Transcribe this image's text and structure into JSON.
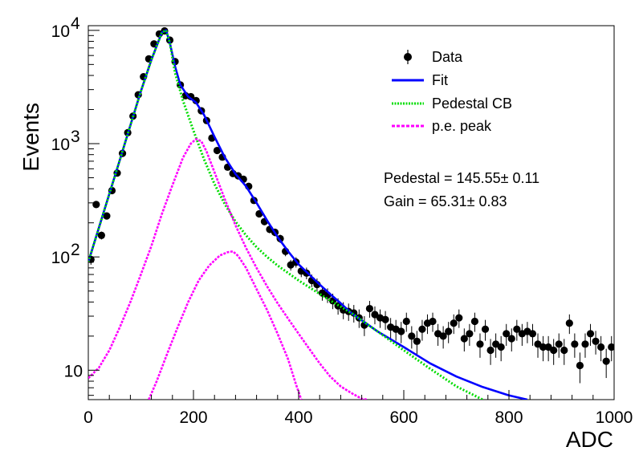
{
  "chart_data": {
    "type": "scatter",
    "xlabel": "ADC",
    "ylabel": "Events",
    "xlim": [
      0,
      1000
    ],
    "ylim": [
      5.5,
      11000
    ],
    "yscale": "log",
    "grid": false,
    "x_ticks": [
      "0",
      "200",
      "400",
      "600",
      "800",
      "1000"
    ],
    "y_ticks": [
      {
        "base": "10",
        "exp": "4",
        "value": 10000
      },
      {
        "base": "10",
        "exp": "3",
        "value": 1000
      },
      {
        "base": "10",
        "exp": "2",
        "value": 100
      },
      {
        "base": "10",
        "exp": "",
        "value": 10
      }
    ],
    "legend": {
      "placement": "top-right",
      "entries": [
        {
          "label": "Data",
          "style": "marker",
          "color": "#000000"
        },
        {
          "label": "Fit",
          "style": "solid",
          "color": "#0000ff"
        },
        {
          "label": "Pedestal CB",
          "style": "dotted",
          "color": "#00dd00"
        },
        {
          "label": "p.e. peak",
          "style": "dashed",
          "color": "#ff00ff"
        }
      ]
    },
    "annotations": [
      "Pedestal = 145.55± 0.11",
      "Gain = 65.31± 0.83"
    ],
    "series": [
      {
        "name": "Data",
        "kind": "points",
        "color": "#000000",
        "points": [
          [
            5,
            95
          ],
          [
            15,
            290
          ],
          [
            25,
            155
          ],
          [
            35,
            230
          ],
          [
            45,
            385
          ],
          [
            55,
            550
          ],
          [
            65,
            820
          ],
          [
            75,
            1250
          ],
          [
            85,
            1750
          ],
          [
            95,
            2700
          ],
          [
            105,
            3900
          ],
          [
            115,
            5600
          ],
          [
            125,
            7600
          ],
          [
            135,
            9300
          ],
          [
            145,
            9900
          ],
          [
            155,
            8200
          ],
          [
            165,
            5300
          ],
          [
            175,
            3300
          ],
          [
            185,
            2650
          ],
          [
            195,
            2600
          ],
          [
            205,
            2400
          ],
          [
            215,
            1950
          ],
          [
            225,
            1600
          ],
          [
            235,
            1120
          ],
          [
            245,
            870
          ],
          [
            255,
            760
          ],
          [
            265,
            620
          ],
          [
            275,
            545
          ],
          [
            285,
            520
          ],
          [
            295,
            485
          ],
          [
            305,
            420
          ],
          [
            315,
            315
          ],
          [
            325,
            240
          ],
          [
            335,
            205
          ],
          [
            345,
            175
          ],
          [
            355,
            165
          ],
          [
            365,
            145
          ],
          [
            375,
            112
          ],
          [
            385,
            85
          ],
          [
            395,
            90
          ],
          [
            405,
            75
          ],
          [
            415,
            72
          ],
          [
            425,
            62
          ],
          [
            435,
            57
          ],
          [
            445,
            48
          ],
          [
            455,
            46
          ],
          [
            465,
            41
          ],
          [
            475,
            37
          ],
          [
            485,
            34
          ],
          [
            495,
            33
          ],
          [
            505,
            32
          ],
          [
            515,
            29
          ],
          [
            525,
            25
          ],
          [
            535,
            35
          ],
          [
            545,
            31
          ],
          [
            555,
            29
          ],
          [
            565,
            28
          ],
          [
            575,
            24
          ],
          [
            585,
            23
          ],
          [
            595,
            22
          ],
          [
            605,
            27
          ],
          [
            615,
            20
          ],
          [
            625,
            18
          ],
          [
            635,
            23
          ],
          [
            645,
            26
          ],
          [
            655,
            27
          ],
          [
            665,
            21
          ],
          [
            675,
            20
          ],
          [
            685,
            22
          ],
          [
            695,
            26
          ],
          [
            705,
            29
          ],
          [
            715,
            19
          ],
          [
            725,
            21
          ],
          [
            735,
            27
          ],
          [
            745,
            17
          ],
          [
            755,
            23
          ],
          [
            765,
            15
          ],
          [
            775,
            17
          ],
          [
            785,
            16
          ],
          [
            795,
            21
          ],
          [
            805,
            19
          ],
          [
            815,
            23
          ],
          [
            825,
            21
          ],
          [
            835,
            22
          ],
          [
            845,
            21
          ],
          [
            855,
            17
          ],
          [
            865,
            16
          ],
          [
            875,
            16
          ],
          [
            885,
            15
          ],
          [
            895,
            17
          ],
          [
            905,
            15
          ],
          [
            915,
            26
          ],
          [
            925,
            17
          ],
          [
            935,
            11
          ],
          [
            945,
            17
          ],
          [
            955,
            21
          ],
          [
            965,
            18
          ],
          [
            975,
            16
          ],
          [
            985,
            12
          ],
          [
            995,
            16
          ]
        ]
      },
      {
        "name": "Fit",
        "kind": "solid",
        "color": "#0000ff",
        "points": [
          [
            0,
            90
          ],
          [
            20,
            180
          ],
          [
            40,
            360
          ],
          [
            60,
            720
          ],
          [
            80,
            1450
          ],
          [
            100,
            2900
          ],
          [
            120,
            5500
          ],
          [
            140,
            9600
          ],
          [
            148,
            10000
          ],
          [
            155,
            7800
          ],
          [
            165,
            4800
          ],
          [
            175,
            3300
          ],
          [
            190,
            2600
          ],
          [
            205,
            2300
          ],
          [
            220,
            1800
          ],
          [
            240,
            1150
          ],
          [
            260,
            750
          ],
          [
            280,
            540
          ],
          [
            300,
            420
          ],
          [
            320,
            300
          ],
          [
            340,
            210
          ],
          [
            360,
            150
          ],
          [
            380,
            112
          ],
          [
            400,
            86
          ],
          [
            420,
            70
          ],
          [
            440,
            57
          ],
          [
            460,
            47
          ],
          [
            480,
            39
          ],
          [
            500,
            32
          ],
          [
            550,
            22
          ],
          [
            600,
            16
          ],
          [
            650,
            11.5
          ],
          [
            700,
            8.8
          ],
          [
            750,
            7.1
          ],
          [
            800,
            6
          ],
          [
            835,
            5.5
          ]
        ]
      },
      {
        "name": "Pedestal CB",
        "kind": "dotted",
        "color": "#00dd00",
        "points": [
          [
            0,
            90
          ],
          [
            20,
            180
          ],
          [
            40,
            360
          ],
          [
            60,
            720
          ],
          [
            80,
            1450
          ],
          [
            100,
            2900
          ],
          [
            120,
            5500
          ],
          [
            140,
            9600
          ],
          [
            148,
            10000
          ],
          [
            155,
            7800
          ],
          [
            165,
            4200
          ],
          [
            180,
            2400
          ],
          [
            200,
            1300
          ],
          [
            220,
            730
          ],
          [
            240,
            440
          ],
          [
            260,
            290
          ],
          [
            280,
            205
          ],
          [
            300,
            155
          ],
          [
            320,
            122
          ],
          [
            340,
            100
          ],
          [
            360,
            84
          ],
          [
            400,
            62
          ],
          [
            450,
            44
          ],
          [
            500,
            32
          ],
          [
            550,
            22
          ],
          [
            600,
            15
          ],
          [
            650,
            10.3
          ],
          [
            700,
            7.2
          ],
          [
            750,
            5.5
          ]
        ]
      },
      {
        "name": "p.e. peak 1",
        "kind": "dashed",
        "color": "#ff00ff",
        "points": [
          [
            0,
            8.5
          ],
          [
            20,
            10.5
          ],
          [
            40,
            15
          ],
          [
            60,
            24
          ],
          [
            80,
            40
          ],
          [
            100,
            70
          ],
          [
            120,
            125
          ],
          [
            140,
            240
          ],
          [
            160,
            430
          ],
          [
            180,
            750
          ],
          [
            195,
            1000
          ],
          [
            205,
            1100
          ],
          [
            215,
            1050
          ],
          [
            225,
            850
          ],
          [
            240,
            560
          ],
          [
            260,
            320
          ],
          [
            280,
            190
          ],
          [
            300,
            120
          ],
          [
            320,
            80
          ],
          [
            340,
            55
          ],
          [
            360,
            39
          ],
          [
            380,
            28.5
          ],
          [
            400,
            21
          ],
          [
            420,
            15.5
          ],
          [
            440,
            11.5
          ],
          [
            460,
            8.8
          ],
          [
            480,
            7.2
          ],
          [
            500,
            6.3
          ],
          [
            520,
            5.6
          ],
          [
            530,
            5.5
          ]
        ]
      },
      {
        "name": "p.e. peak 2",
        "kind": "dashed",
        "color": "#ff00ff",
        "points": [
          [
            115,
            5.5
          ],
          [
            130,
            8
          ],
          [
            150,
            14
          ],
          [
            170,
            24
          ],
          [
            190,
            40
          ],
          [
            210,
            62
          ],
          [
            230,
            84
          ],
          [
            250,
            103
          ],
          [
            265,
            110
          ],
          [
            275,
            112
          ],
          [
            285,
            102
          ],
          [
            300,
            80
          ],
          [
            320,
            52
          ],
          [
            340,
            34
          ],
          [
            360,
            21
          ],
          [
            380,
            12.5
          ],
          [
            395,
            7.5
          ],
          [
            405,
            5.5
          ]
        ]
      }
    ]
  }
}
